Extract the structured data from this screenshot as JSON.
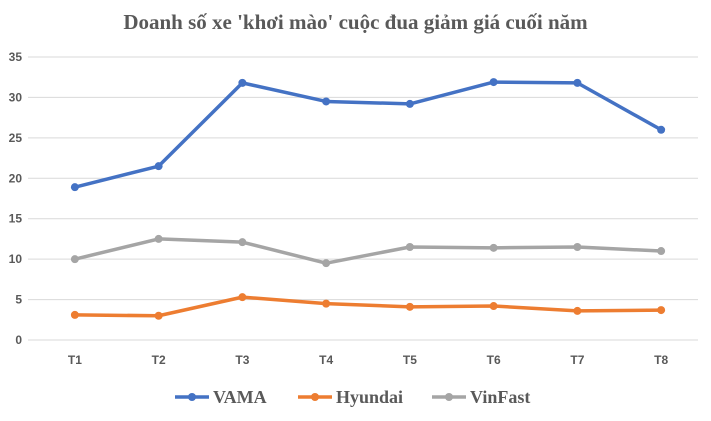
{
  "chart_data": {
    "type": "line",
    "title": "Doanh số xe 'khơi mào' cuộc đua giảm giá cuối năm",
    "categories": [
      "T1",
      "T2",
      "T3",
      "T4",
      "T5",
      "T6",
      "T7",
      "T8"
    ],
    "ylim": [
      0,
      35
    ],
    "yticks": [
      0,
      5,
      10,
      15,
      20,
      25,
      30,
      35
    ],
    "grid": true,
    "legend_position": "bottom",
    "series": [
      {
        "name": "VAMA",
        "color": "#4472C4",
        "values": [
          18.9,
          21.5,
          31.8,
          29.5,
          29.2,
          31.9,
          31.8,
          26.0
        ]
      },
      {
        "name": "Hyundai",
        "color": "#ED7D31",
        "values": [
          3.1,
          3.0,
          5.3,
          4.5,
          4.1,
          4.2,
          3.6,
          3.7
        ]
      },
      {
        "name": "VinFast",
        "color": "#A5A5A5",
        "values": [
          10.0,
          12.5,
          12.1,
          9.5,
          11.5,
          11.4,
          11.5,
          11.0
        ]
      }
    ]
  }
}
